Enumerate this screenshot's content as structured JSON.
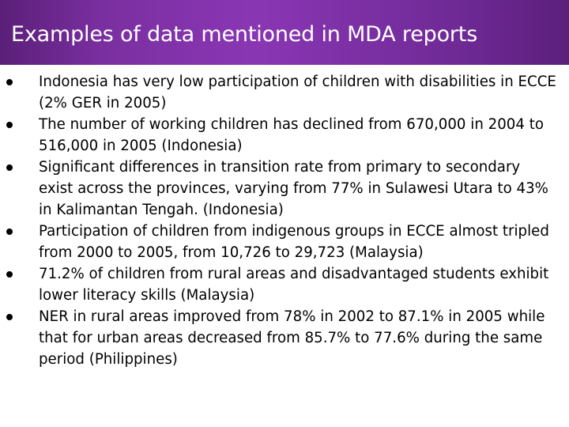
{
  "slide": {
    "title": "Examples of data mentioned in MDA reports",
    "accent_color": "#7a2fa0",
    "bullets": [
      "Indonesia has very low participation of children with disabilities in ECCE (2% GER in 2005)",
      "The number of working children has declined from 670,000 in 2004 to 516,000 in 2005 (Indonesia)",
      "Significant differences in transition rate from primary to secondary exist across the provinces, varying from 77% in Sulawesi Utara to 43% in Kalimantan Tengah. (Indonesia)",
      "Participation of children from indigenous groups in ECCE almost tripled from 2000 to 2005, from 10,726 to 29,723 (Malaysia)",
      "71.2% of children from rural areas and disadvantaged students exhibit lower literacy skills (Malaysia)",
      "NER in rural areas improved from 78% in 2002 to 87.1% in 2005 while that for urban areas decreased from 85.7% to 77.6% during the same period (Philippines)"
    ]
  }
}
